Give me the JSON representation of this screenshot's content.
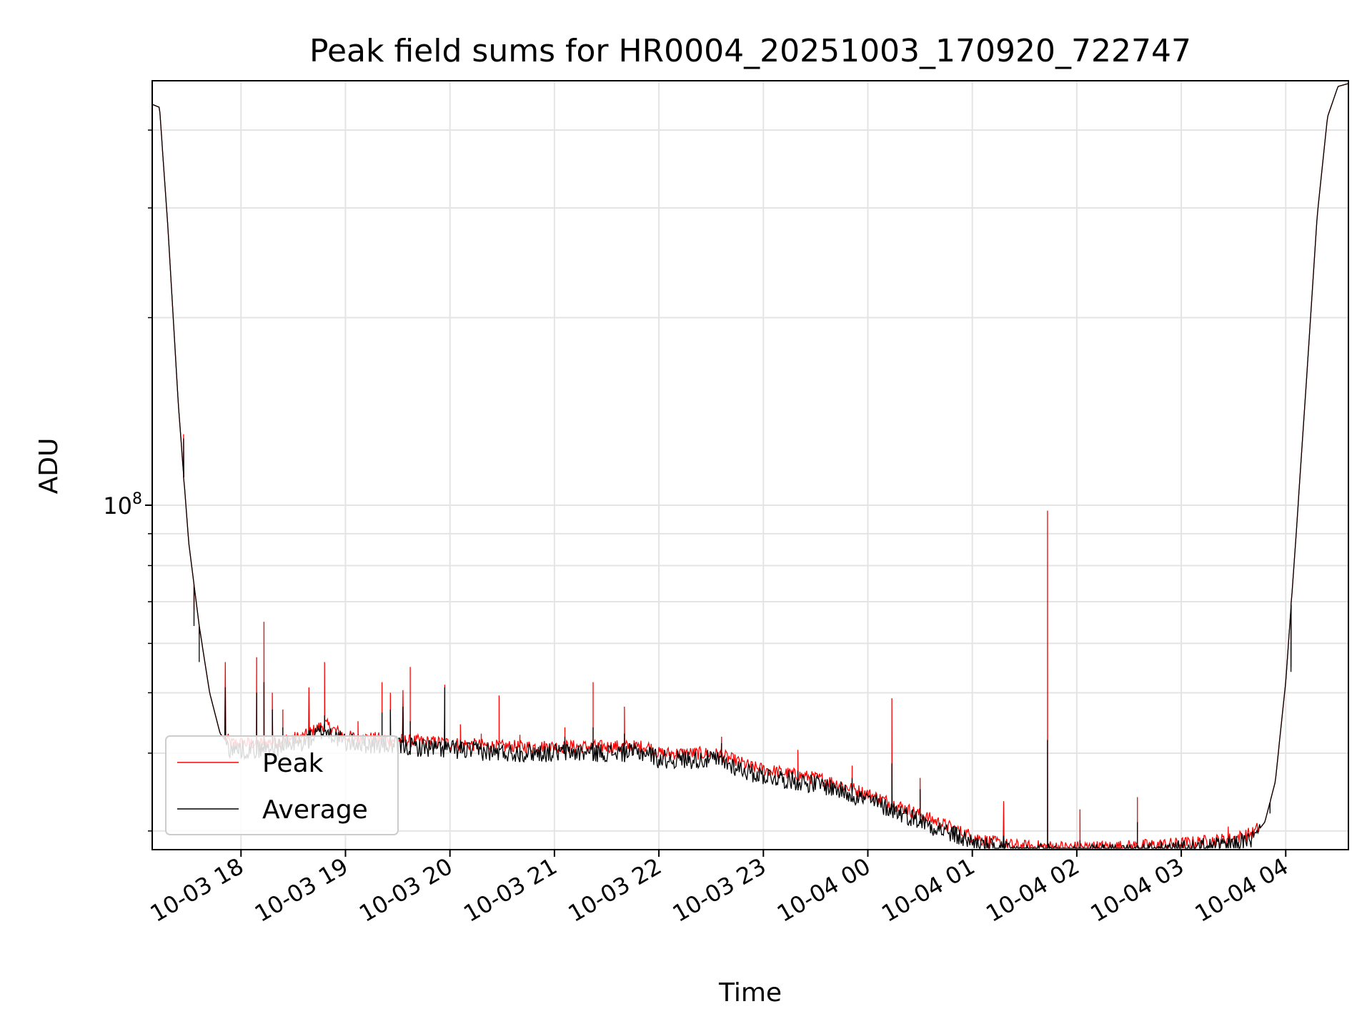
{
  "chart_data": {
    "type": "line",
    "title": "Peak field sums for HR0004_20251003_170920_722747",
    "xlabel": "Time",
    "ylabel": "ADU",
    "yscale": "log",
    "grid": true,
    "legend_position": "lower-left",
    "xlim_hours": [
      17.15,
      28.6
    ],
    "ylim": [
      28000000,
      480000000
    ],
    "x_unit": "hours since 2025-10-03 00:00",
    "x_ticks": [
      18,
      19,
      20,
      21,
      22,
      23,
      24,
      25,
      26,
      27,
      28
    ],
    "x_tick_labels": [
      "10-03 18",
      "10-03 19",
      "10-03 20",
      "10-03 21",
      "10-03 22",
      "10-03 23",
      "10-04 00",
      "10-04 01",
      "10-04 02",
      "10-04 03",
      "10-04 04"
    ],
    "y_major_ticks": [
      100000000
    ],
    "y_major_label_base": "10",
    "y_major_label_exp": "8",
    "y_minor_ticks": [
      30000000,
      40000000,
      50000000,
      60000000,
      70000000,
      80000000,
      90000000,
      200000000,
      300000000,
      400000000
    ],
    "average_baseline": [
      [
        17.15,
        440000000
      ],
      [
        17.22,
        435000000
      ],
      [
        17.3,
        280000000
      ],
      [
        17.4,
        145000000
      ],
      [
        17.5,
        87000000
      ],
      [
        17.6,
        64000000
      ],
      [
        17.7,
        50000000
      ],
      [
        17.8,
        43000000
      ],
      [
        17.9,
        41000000
      ],
      [
        18.2,
        41000000
      ],
      [
        18.6,
        42000000
      ],
      [
        18.8,
        44000000
      ],
      [
        19.0,
        42000000
      ],
      [
        19.5,
        41500000
      ],
      [
        20.0,
        41000000
      ],
      [
        20.5,
        40500000
      ],
      [
        21.0,
        40500000
      ],
      [
        21.5,
        40500000
      ],
      [
        21.9,
        40500000
      ],
      [
        22.0,
        39500000
      ],
      [
        22.5,
        39500000
      ],
      [
        22.6,
        39200000
      ],
      [
        22.9,
        37500000
      ],
      [
        23.3,
        36500000
      ],
      [
        23.6,
        35800000
      ],
      [
        24.0,
        34000000
      ],
      [
        24.3,
        32500000
      ],
      [
        24.6,
        31000000
      ],
      [
        24.9,
        29500000
      ],
      [
        25.1,
        28700000
      ],
      [
        25.3,
        28200000
      ],
      [
        25.5,
        28000000
      ],
      [
        26.0,
        27900000
      ],
      [
        26.5,
        28000000
      ],
      [
        27.0,
        28300000
      ],
      [
        27.5,
        28800000
      ],
      [
        27.7,
        29500000
      ],
      [
        27.8,
        31000000
      ],
      [
        27.9,
        36000000
      ],
      [
        28.0,
        52000000
      ],
      [
        28.1,
        90000000
      ],
      [
        28.2,
        160000000
      ],
      [
        28.3,
        290000000
      ],
      [
        28.4,
        420000000
      ],
      [
        28.5,
        470000000
      ],
      [
        28.6,
        475000000
      ]
    ],
    "series": [
      {
        "name": "Peak",
        "color": "#ff0000",
        "spikes": [
          [
            17.45,
            130000000
          ],
          [
            17.55,
            68000000
          ],
          [
            17.6,
            62000000
          ],
          [
            17.85,
            56000000
          ],
          [
            18.15,
            57000000
          ],
          [
            18.22,
            65000000
          ],
          [
            18.3,
            50000000
          ],
          [
            18.4,
            47000000
          ],
          [
            18.65,
            51000000
          ],
          [
            18.8,
            56000000
          ],
          [
            19.12,
            45000000
          ],
          [
            19.35,
            52000000
          ],
          [
            19.43,
            50000000
          ],
          [
            19.55,
            50500000
          ],
          [
            19.62,
            55000000
          ],
          [
            19.95,
            51500000
          ],
          [
            20.1,
            44500000
          ],
          [
            20.3,
            43000000
          ],
          [
            20.47,
            49500000
          ],
          [
            20.67,
            42800000
          ],
          [
            21.1,
            44000000
          ],
          [
            21.37,
            52000000
          ],
          [
            21.67,
            47500000
          ],
          [
            22.6,
            42500000
          ],
          [
            23.33,
            40500000
          ],
          [
            23.85,
            38200000
          ],
          [
            24.23,
            49000000
          ],
          [
            24.5,
            36500000
          ],
          [
            25.3,
            33500000
          ],
          [
            25.72,
            98000000
          ],
          [
            26.03,
            32500000
          ],
          [
            26.58,
            34000000
          ],
          [
            27.45,
            30500000
          ],
          [
            27.85,
            33000000
          ],
          [
            28.05,
            55000000
          ]
        ]
      },
      {
        "name": "Average",
        "color": "#000000",
        "spikes": [
          [
            17.45,
            128000000
          ],
          [
            17.55,
            64000000
          ],
          [
            17.6,
            56000000
          ],
          [
            17.85,
            51000000
          ],
          [
            18.15,
            50000000
          ],
          [
            18.22,
            52000000
          ],
          [
            18.3,
            47000000
          ],
          [
            18.4,
            44000000
          ],
          [
            18.65,
            43500000
          ],
          [
            18.8,
            46000000
          ],
          [
            19.12,
            42500000
          ],
          [
            19.35,
            46500000
          ],
          [
            19.43,
            47000000
          ],
          [
            19.55,
            47500000
          ],
          [
            19.62,
            45000000
          ],
          [
            19.95,
            51000000
          ],
          [
            20.1,
            42000000
          ],
          [
            20.3,
            41500000
          ],
          [
            20.47,
            41500000
          ],
          [
            20.67,
            41200000
          ],
          [
            21.1,
            42500000
          ],
          [
            21.37,
            44000000
          ],
          [
            21.67,
            43000000
          ],
          [
            22.6,
            41500000
          ],
          [
            23.33,
            37500000
          ],
          [
            23.85,
            36500000
          ],
          [
            24.23,
            38500000
          ],
          [
            24.5,
            35000000
          ],
          [
            25.3,
            29500000
          ],
          [
            25.72,
            42000000
          ],
          [
            26.03,
            29000000
          ],
          [
            26.58,
            31000000
          ],
          [
            27.45,
            29200000
          ],
          [
            27.85,
            32000000
          ],
          [
            28.05,
            54000000
          ]
        ]
      }
    ]
  }
}
